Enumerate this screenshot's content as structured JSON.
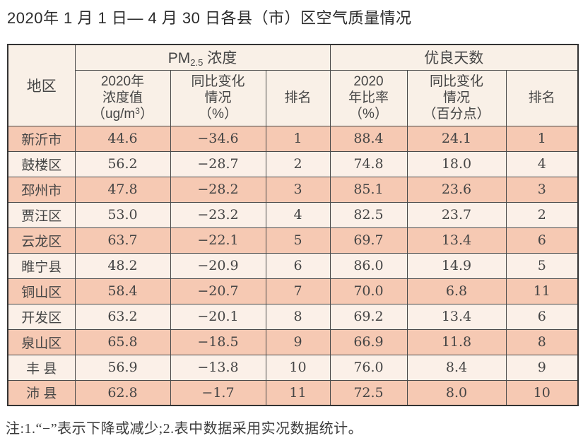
{
  "title": "2020年 1 月 1 日— 4 月 30 日各县（市）区空气质量情况",
  "table": {
    "region_header": "地区",
    "pm_group": {
      "prefix": "PM",
      "sub": "2.5",
      "suffix": " 浓度"
    },
    "good_days_group": "优良天数",
    "pm_value_header": {
      "line1": "2020年",
      "line2": "浓度值",
      "line3_prefix": "（ug/m",
      "line3_sup": "3",
      "line3_suffix": "）"
    },
    "pm_change_header": {
      "line1": "同比变化",
      "line2": "情况",
      "line3": "（%）"
    },
    "pm_rank_header": "排名",
    "ratio_header": {
      "line1": "2020",
      "line2": "年比率",
      "line3": "（%）"
    },
    "ratio_change_header": {
      "line1": "同比变化",
      "line2": "情况",
      "line3": "（百分点）"
    },
    "ratio_rank_header": "排名",
    "rows": [
      {
        "region": "新沂市",
        "pm_value": "44.6",
        "pm_change": "−34.6",
        "pm_rank": "1",
        "ratio": "88.4",
        "ratio_change": "24.1",
        "rank": "1"
      },
      {
        "region": "鼓楼区",
        "pm_value": "56.2",
        "pm_change": "−28.7",
        "pm_rank": "2",
        "ratio": "74.8",
        "ratio_change": "18.0",
        "rank": "4"
      },
      {
        "region": "邳州市",
        "pm_value": "47.8",
        "pm_change": "−28.2",
        "pm_rank": "3",
        "ratio": "85.1",
        "ratio_change": "23.6",
        "rank": "3"
      },
      {
        "region": "贾汪区",
        "pm_value": "53.0",
        "pm_change": "−23.2",
        "pm_rank": "4",
        "ratio": "82.5",
        "ratio_change": "23.7",
        "rank": "2"
      },
      {
        "region": "云龙区",
        "pm_value": "63.7",
        "pm_change": "−22.1",
        "pm_rank": "5",
        "ratio": "69.7",
        "ratio_change": "13.4",
        "rank": "6"
      },
      {
        "region": "睢宁县",
        "pm_value": "48.2",
        "pm_change": "−20.9",
        "pm_rank": "6",
        "ratio": "86.0",
        "ratio_change": "14.9",
        "rank": "5"
      },
      {
        "region": "铜山区",
        "pm_value": "58.4",
        "pm_change": "−20.7",
        "pm_rank": "7",
        "ratio": "70.0",
        "ratio_change": "6.8",
        "rank": "11"
      },
      {
        "region": "开发区",
        "pm_value": "63.2",
        "pm_change": "−20.1",
        "pm_rank": "8",
        "ratio": "69.2",
        "ratio_change": "13.4",
        "rank": "6"
      },
      {
        "region": "泉山区",
        "pm_value": "65.8",
        "pm_change": "−18.5",
        "pm_rank": "9",
        "ratio": "66.9",
        "ratio_change": "11.8",
        "rank": "8"
      },
      {
        "region": "丰 县",
        "pm_value": "56.9",
        "pm_change": "−13.8",
        "pm_rank": "10",
        "ratio": "76.0",
        "ratio_change": "8.4",
        "rank": "9"
      },
      {
        "region": "沛 县",
        "pm_value": "62.8",
        "pm_change": "−1.7",
        "pm_rank": "11",
        "ratio": "72.5",
        "ratio_change": "8.0",
        "rank": "10"
      }
    ]
  },
  "note": "注:1.“−”表示下降或减少;2.表中数据采用实况数据统计。",
  "colors": {
    "row_odd": "#f6c9b3",
    "row_even": "#fbf0e8",
    "header_bg": "#f9f0e7",
    "grid_line": "#4a4a4a",
    "outer_border": "#333333",
    "text": "#454545"
  }
}
